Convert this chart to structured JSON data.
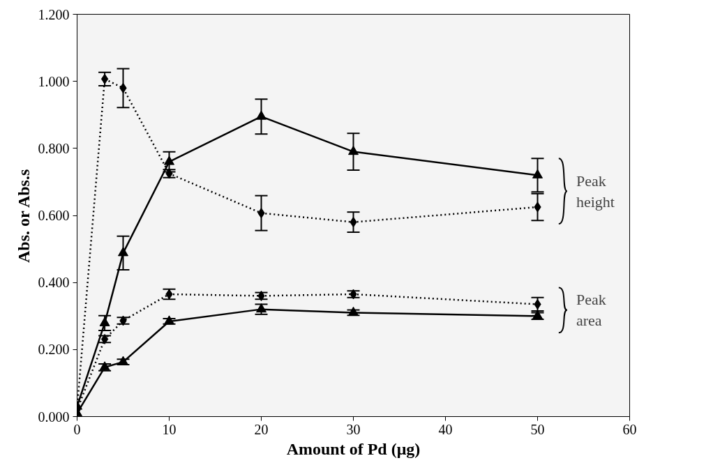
{
  "chart_data": {
    "type": "line",
    "xlabel": "Amount of Pd (μg)",
    "ylabel": "Abs. or Abs.s",
    "x": [
      0,
      3,
      5,
      10,
      20,
      30,
      50
    ],
    "series": [
      {
        "color": "#000000",
        "marker": "diamond",
        "line_style": "dotted",
        "values": [
          0.025,
          1.007,
          0.98,
          0.725,
          0.607,
          0.58,
          0.625
        ],
        "errors": [
          null,
          0.02,
          0.058,
          0.012,
          0.052,
          0.03,
          0.04
        ]
      },
      {
        "color": "#000000",
        "marker": "triangle",
        "line_style": "solid",
        "values": [
          0.03,
          0.279,
          0.488,
          0.76,
          0.895,
          0.79,
          0.72
        ],
        "errors": [
          null,
          0.022,
          0.05,
          0.03,
          0.052,
          0.055,
          0.05
        ]
      },
      {
        "color": "#000000",
        "marker": "diamond",
        "line_style": "dotted",
        "values": [
          0.02,
          0.231,
          0.286,
          0.365,
          0.36,
          0.365,
          0.335
        ],
        "errors": [
          null,
          0.01,
          0.01,
          0.015,
          0.01,
          0.01,
          0.02
        ]
      },
      {
        "color": "#000000",
        "marker": "triangle",
        "line_style": "solid",
        "values": [
          0.01,
          0.147,
          0.163,
          0.284,
          0.32,
          0.31,
          0.3
        ],
        "errors": [
          null,
          0.01,
          0.008,
          0.008,
          0.015,
          0.008,
          0.01
        ]
      }
    ],
    "annotations": [
      "Peak\nheight",
      "Peak\narea"
    ],
    "xlim": [
      0,
      60
    ],
    "xticks": [
      0,
      10,
      20,
      30,
      40,
      50,
      60
    ],
    "ylim": [
      0,
      1.2
    ],
    "yticks": [
      {
        "value": 0,
        "label": "0.000"
      },
      {
        "value": 0.2,
        "label": "0.200"
      },
      {
        "value": 0.4,
        "label": "0.400"
      },
      {
        "value": 0.6,
        "label": "0.600"
      },
      {
        "value": 0.8,
        "label": "0.800"
      },
      {
        "value": 1.0,
        "label": "1.000"
      },
      {
        "value": 1.2,
        "label": "1.200"
      }
    ],
    "grid": false
  }
}
